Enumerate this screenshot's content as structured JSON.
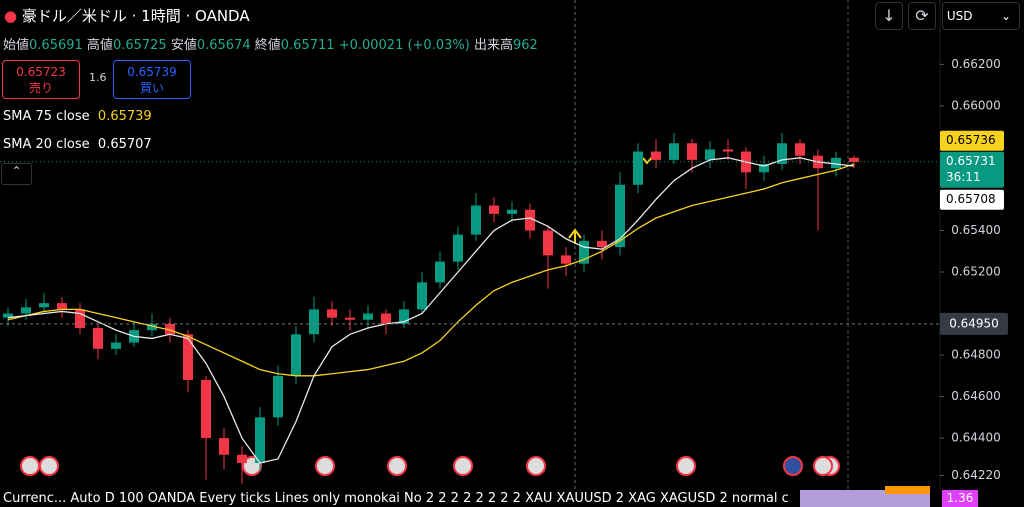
{
  "header": {
    "symbol": "豪ドル／米ドル · 1時間 · OANDA",
    "ohlc": [
      {
        "label": "始値",
        "value": 0.65691
      },
      {
        "label": "高値",
        "value": 0.65725
      },
      {
        "label": "安値",
        "value": 0.65674
      },
      {
        "label": "終値",
        "value": 0.65711
      }
    ],
    "change": "+0.00021 (+0.03%)",
    "volume_label": "出来高",
    "volume": 962
  },
  "trade": {
    "sell_price": 0.65723,
    "sell_label": "売り",
    "spread": 1.6,
    "buy_price": 0.65739,
    "buy_label": "買い"
  },
  "currency": "USD",
  "chart_data": {
    "type": "candlestick",
    "up_color": "#089981",
    "down_color": "#f23645",
    "open": [
      0.6498,
      0.65,
      0.6503,
      0.6505,
      0.6502,
      0.6493,
      0.6483,
      0.6486,
      0.6492,
      0.6495,
      0.649,
      0.6468,
      0.644,
      0.6432,
      0.6428,
      0.645,
      0.647,
      0.649,
      0.6502,
      0.6498,
      0.6497,
      0.65,
      0.6495,
      0.6502,
      0.6515,
      0.6525,
      0.6538,
      0.6552,
      0.6548,
      0.655,
      0.654,
      0.6528,
      0.6524,
      0.6535,
      0.6532,
      0.6562,
      0.6578,
      0.6574,
      0.6582,
      0.6574,
      0.6579,
      0.6578,
      0.6568,
      0.6572,
      0.6582,
      0.6576,
      0.657,
      0.6575
    ],
    "high": [
      0.6503,
      0.6507,
      0.651,
      0.6508,
      0.6505,
      0.6495,
      0.649,
      0.6496,
      0.65,
      0.6498,
      0.6492,
      0.647,
      0.6445,
      0.6436,
      0.6455,
      0.6475,
      0.6494,
      0.6508,
      0.6506,
      0.6502,
      0.6504,
      0.6502,
      0.6506,
      0.652,
      0.653,
      0.6542,
      0.6558,
      0.6556,
      0.6554,
      0.6553,
      0.6542,
      0.6532,
      0.6538,
      0.654,
      0.6568,
      0.6582,
      0.6584,
      0.6587,
      0.6584,
      0.6583,
      0.6584,
      0.658,
      0.6576,
      0.6587,
      0.6584,
      0.6579,
      0.6578,
      0.6576
    ],
    "low": [
      0.6494,
      0.6497,
      0.65,
      0.6498,
      0.649,
      0.6478,
      0.648,
      0.6484,
      0.6489,
      0.6486,
      0.6462,
      0.642,
      0.6425,
      0.6418,
      0.6424,
      0.6446,
      0.6466,
      0.6486,
      0.6494,
      0.6492,
      0.6493,
      0.649,
      0.6493,
      0.65,
      0.6512,
      0.6521,
      0.6535,
      0.6544,
      0.6544,
      0.6536,
      0.6512,
      0.6518,
      0.652,
      0.6526,
      0.6528,
      0.6558,
      0.657,
      0.6572,
      0.6568,
      0.657,
      0.6574,
      0.656,
      0.6564,
      0.6569,
      0.6572,
      0.654,
      0.6566,
      0.657
    ],
    "close": [
      0.65,
      0.6503,
      0.6505,
      0.6502,
      0.6493,
      0.6483,
      0.6486,
      0.6492,
      0.6495,
      0.649,
      0.6468,
      0.644,
      0.6432,
      0.6428,
      0.645,
      0.647,
      0.649,
      0.6502,
      0.6498,
      0.6497,
      0.65,
      0.6495,
      0.6502,
      0.6515,
      0.6525,
      0.6538,
      0.6552,
      0.6548,
      0.655,
      0.654,
      0.6528,
      0.6524,
      0.6535,
      0.6532,
      0.6562,
      0.6578,
      0.6574,
      0.6582,
      0.6574,
      0.6579,
      0.6578,
      0.6568,
      0.6572,
      0.6582,
      0.6576,
      0.657,
      0.6575,
      0.6573
    ],
    "series": [
      {
        "name": "SMA 75 close",
        "color": "#f7d21c",
        "legend_value": 0.65739,
        "values": [
          0.6497,
          0.6499,
          0.6501,
          0.6502,
          0.6502,
          0.65,
          0.6498,
          0.6496,
          0.6494,
          0.6492,
          0.6489,
          0.6485,
          0.6481,
          0.6477,
          0.6473,
          0.6471,
          0.647,
          0.647,
          0.6471,
          0.6472,
          0.6473,
          0.6475,
          0.6477,
          0.6481,
          0.6487,
          0.6496,
          0.6504,
          0.6511,
          0.6515,
          0.6518,
          0.6521,
          0.6523,
          0.6526,
          0.653,
          0.6535,
          0.6541,
          0.6546,
          0.6549,
          0.6552,
          0.6554,
          0.6556,
          0.6558,
          0.656,
          0.6563,
          0.6565,
          0.6567,
          0.6569,
          0.6572
        ]
      },
      {
        "name": "SMA 20 close",
        "color": "#e8e8e8",
        "legend_value": 0.65707,
        "values": [
          0.6498,
          0.6499,
          0.65,
          0.6501,
          0.65,
          0.6496,
          0.6492,
          0.6489,
          0.6488,
          0.649,
          0.6488,
          0.6476,
          0.646,
          0.644,
          0.6428,
          0.643,
          0.6448,
          0.647,
          0.6484,
          0.649,
          0.6493,
          0.6495,
          0.6496,
          0.65,
          0.651,
          0.652,
          0.653,
          0.654,
          0.6545,
          0.6546,
          0.6542,
          0.6536,
          0.6532,
          0.6531,
          0.6536,
          0.6545,
          0.6555,
          0.6564,
          0.657,
          0.6574,
          0.6575,
          0.6573,
          0.6571,
          0.6574,
          0.6575,
          0.6573,
          0.6572,
          0.6571
        ]
      }
    ],
    "ylim": [
      0.6415,
      0.6651
    ],
    "yticks": [
      {
        "value": 0.662,
        "label": "0.66200"
      },
      {
        "value": 0.66,
        "label": "0.66000"
      },
      {
        "value": 0.654,
        "label": "0.65400"
      },
      {
        "value": 0.652,
        "label": "0.65200"
      },
      {
        "value": 0.648,
        "label": "0.64800"
      },
      {
        "value": 0.646,
        "label": "0.64600"
      },
      {
        "value": 0.644,
        "label": "0.64400"
      },
      {
        "value": 0.6422,
        "label": "0.64220"
      }
    ],
    "price_labels": [
      {
        "value": 0.65736,
        "color": "#f7d21c",
        "text_color": "#000000"
      },
      {
        "value": 0.65731,
        "color": "#089981",
        "text_color": "#ffffff",
        "timer": "36:11"
      },
      {
        "value": 0.65708,
        "color": "#ffffff",
        "text_color": "#000000"
      }
    ],
    "crosshair": {
      "value": 0.6495,
      "label": "0.64950"
    }
  },
  "bottom_bar": {
    "text": "Currenc...   Auto D 100 OANDA Every ticks Lines only monokai No 2 2 2 2 2 2 2 2 XAU XAUUSD 2 XAG XAGUSD 2 normal c",
    "value": "1.36"
  }
}
